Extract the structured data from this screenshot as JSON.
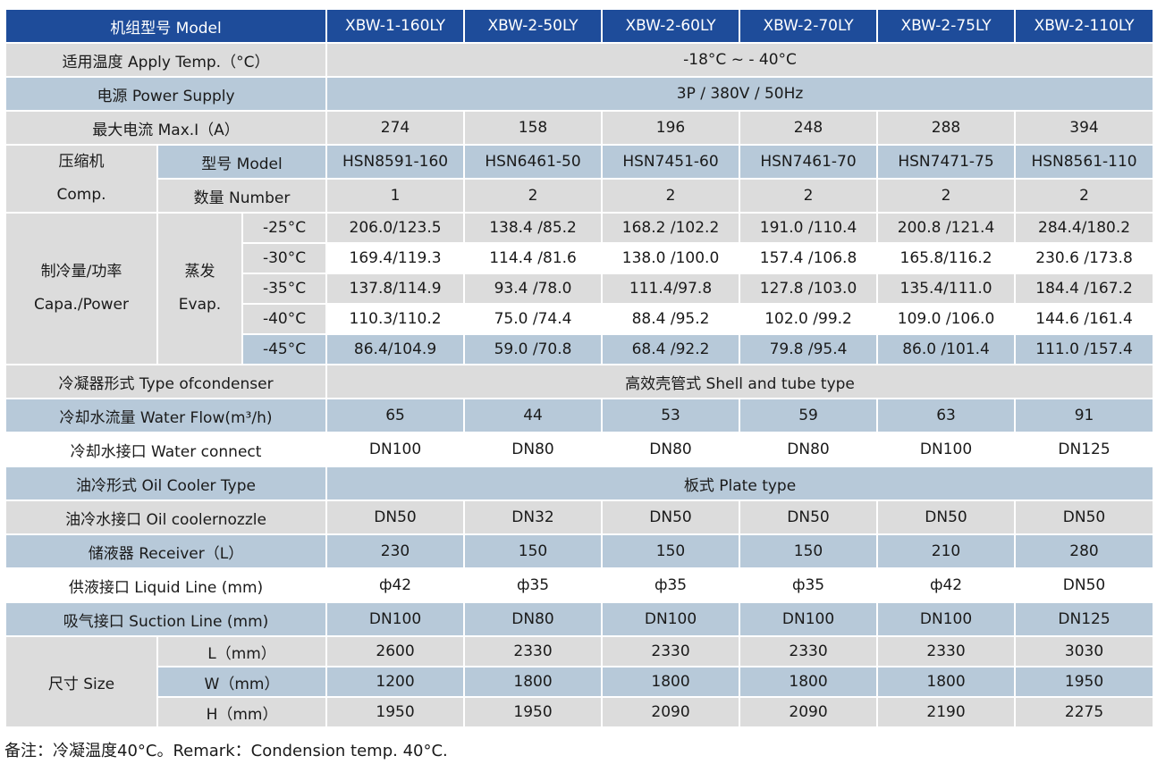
{
  "header": {
    "label": "机组型号 Model",
    "models": [
      "XBW-1-160LY",
      "XBW-2-50LY",
      "XBW-2-60LY",
      "XBW-2-70LY",
      "XBW-2-75LY",
      "XBW-2-110LY"
    ]
  },
  "apply_temp": {
    "label": "适用温度 Apply Temp.（°C）",
    "value": "-18°C ~ - 40°C"
  },
  "power_supply": {
    "label": "电源 Power Supply",
    "value": "3P / 380V / 50Hz"
  },
  "max_current": {
    "label": "最大电流 Max.I（A）",
    "values": [
      "274",
      "158",
      "196",
      "248",
      "288",
      "394"
    ]
  },
  "compressor": {
    "label_cn": "压缩机",
    "label_en": "Comp.",
    "model_label": "型号 Model",
    "models": [
      "HSN8591-160",
      "HSN6461-50",
      "HSN7451-60",
      "HSN7461-70",
      "HSN7471-75",
      "HSN8561-110"
    ],
    "number_label": "数量 Number",
    "numbers": [
      "1",
      "2",
      "2",
      "2",
      "2",
      "2"
    ]
  },
  "capacity": {
    "label_cn": "制冷量/功率",
    "label_en": "Capa./Power",
    "evap_cn": "蒸发",
    "evap_en": "Evap.",
    "rows": [
      {
        "temp": "-25°C",
        "values": [
          "206.0/123.5",
          "138.4 /85.2",
          "168.2 /102.2",
          "191.0 /110.4",
          "200.8 /121.4",
          "284.4/180.2"
        ]
      },
      {
        "temp": "-30°C",
        "values": [
          "169.4/119.3",
          "114.4 /81.6",
          "138.0 /100.0",
          "157.4 /106.8",
          "165.8/116.2",
          "230.6 /173.8"
        ]
      },
      {
        "temp": "-35°C",
        "values": [
          "137.8/114.9",
          "93.4 /78.0",
          "111.4/97.8",
          "127.8 /103.0",
          "135.4/111.0",
          "184.4 /167.2"
        ]
      },
      {
        "temp": "-40°C",
        "values": [
          "110.3/110.2",
          "75.0 /74.4",
          "88.4 /95.2",
          "102.0 /99.2",
          "109.0 /106.0",
          "144.6 /161.4"
        ]
      },
      {
        "temp": "-45°C",
        "values": [
          "86.4/104.9",
          "59.0 /70.8",
          "68.4 /92.2",
          "79.8 /95.4",
          "86.0 /101.4",
          "111.0 /157.4"
        ]
      }
    ]
  },
  "condenser_type": {
    "label": "冷凝器形式 Type ofcondenser",
    "value": "高效壳管式 Shell and tube type"
  },
  "water_flow": {
    "label": "冷却水流量 Water Flow(m³/h)",
    "values": [
      "65",
      "44",
      "53",
      "59",
      "63",
      "91"
    ]
  },
  "water_connect": {
    "label": "冷却水接口 Water connect",
    "values": [
      "DN100",
      "DN80",
      "DN80",
      "DN80",
      "DN100",
      "DN125"
    ]
  },
  "oil_cooler_type": {
    "label": "油冷形式 Oil Cooler Type",
    "value": "板式 Plate type"
  },
  "oil_nozzle": {
    "label": "油冷水接口 Oil coolernozzle",
    "values": [
      "DN50",
      "DN32",
      "DN50",
      "DN50",
      "DN50",
      "DN50"
    ]
  },
  "receiver": {
    "label": "储液器 Receiver（L）",
    "values": [
      "230",
      "150",
      "150",
      "150",
      "210",
      "280"
    ]
  },
  "liquid_line": {
    "label": "供液接口 Liquid Line (mm)",
    "values": [
      "ф42",
      "ф35",
      "ф35",
      "ф35",
      "ф42",
      "DN50"
    ]
  },
  "suction_line": {
    "label": "吸气接口 Suction Line (mm)",
    "values": [
      "DN100",
      "DN80",
      "DN100",
      "DN100",
      "DN100",
      "DN125"
    ]
  },
  "size": {
    "label": "尺寸 Size",
    "rows": [
      {
        "dim": "L（mm）",
        "values": [
          "2600",
          "2330",
          "2330",
          "2330",
          "2330",
          "3030"
        ]
      },
      {
        "dim": "W（mm）",
        "values": [
          "1200",
          "1800",
          "1800",
          "1800",
          "1800",
          "1950"
        ]
      },
      {
        "dim": "H（mm）",
        "values": [
          "1950",
          "1950",
          "2090",
          "2090",
          "2190",
          "2275"
        ]
      }
    ]
  },
  "remark": "备注：冷凝温度40°C。Remark：Condension temp. 40°C."
}
